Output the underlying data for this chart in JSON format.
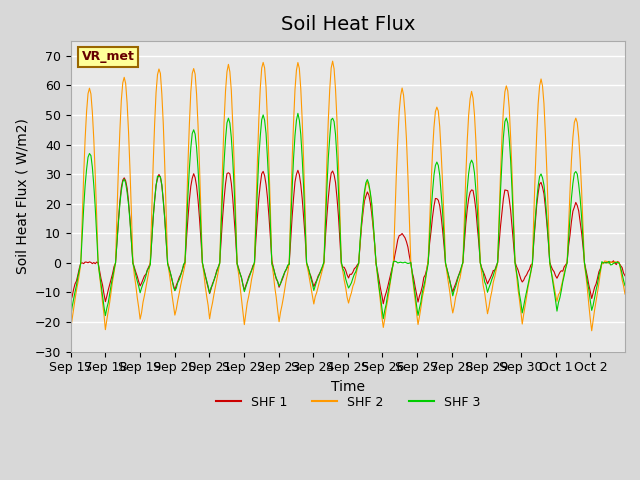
{
  "title": "Soil Heat Flux",
  "ylabel": "Soil Heat Flux ( W/m2)",
  "xlabel": "Time",
  "ylim": [
    -30,
    75
  ],
  "yticks": [
    -30,
    -20,
    -10,
    0,
    10,
    20,
    30,
    40,
    50,
    60,
    70
  ],
  "xtick_labels": [
    "Sep 17",
    "Sep 18",
    "Sep 19",
    "Sep 20",
    "Sep 21",
    "Sep 22",
    "Sep 23",
    "Sep 24",
    "Sep 25",
    "Sep 26",
    "Sep 27",
    "Sep 28",
    "Sep 29",
    "Sep 30",
    "Oct 1",
    "Oct 2"
  ],
  "colors": {
    "SHF 1": "#cc0000",
    "SHF 2": "#ff9900",
    "SHF 3": "#00cc00"
  },
  "legend_label": "VR_met",
  "bg_color": "#e8e8e8",
  "grid_color": "#ffffff",
  "title_fontsize": 14,
  "axis_fontsize": 10,
  "tick_fontsize": 9,
  "n_days": 16,
  "hours_per_day": 24,
  "shf2_peaks": [
    59,
    63,
    66,
    66,
    67,
    68,
    68,
    68,
    27,
    59,
    53,
    58,
    60,
    62,
    49,
    0
  ],
  "shf1_peaks": [
    0,
    29,
    30,
    30,
    31,
    31,
    31,
    31,
    24,
    10,
    22,
    25,
    25,
    27,
    20,
    0
  ],
  "shf3_peaks": [
    37,
    28,
    30,
    45,
    49,
    50,
    50,
    50,
    28,
    0,
    34,
    35,
    49,
    30,
    31,
    0
  ],
  "shf2_nights": [
    -22,
    -19,
    -18,
    -19,
    -20,
    -20,
    -14,
    -14,
    -22,
    -21,
    -17,
    -17,
    -20,
    -13,
    -23,
    -13
  ],
  "shf1_nights": [
    -13,
    -8,
    -9,
    -10,
    -9,
    -8,
    -8,
    -5,
    -14,
    -13,
    -10,
    -7,
    -7,
    -5,
    -12,
    -5
  ],
  "shf3_nights": [
    -18,
    -10,
    -10,
    -10,
    -9,
    -8,
    -9,
    -9,
    -19,
    -18,
    -11,
    -10,
    -17,
    -16,
    -16,
    -10
  ]
}
